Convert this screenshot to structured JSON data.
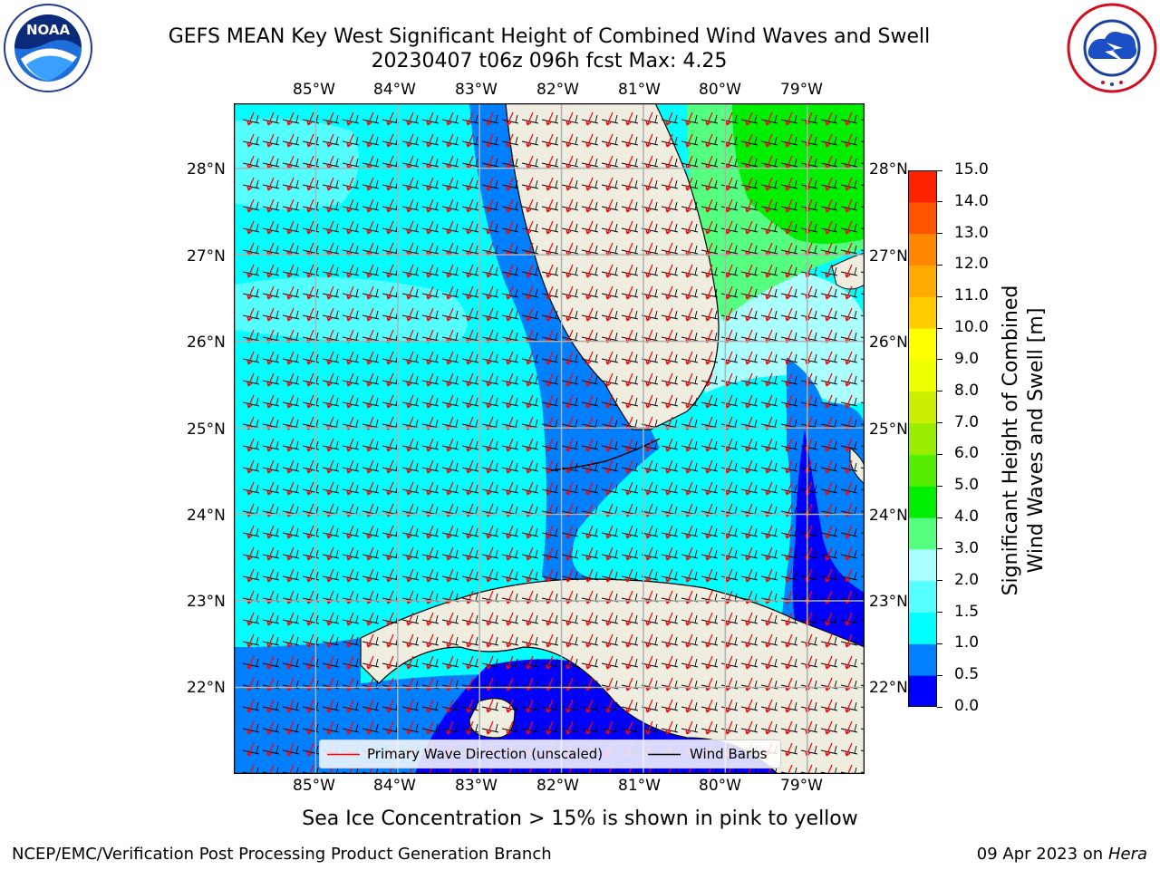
{
  "title": {
    "line1": "GEFS MEAN Key West Significant Height of Combined Wind Waves and Swell",
    "line2": "20230407 t06z 096h fcst   Max: 4.25"
  },
  "logos": {
    "left": "NOAA",
    "left_ring": "NATIONAL OCEANIC AND ATMOSPHERIC ADMINISTRATION · U.S. DEPARTMENT OF COMMERCE",
    "right_ring": "NATIONAL WEATHER SERVICE"
  },
  "map": {
    "lon_labels": [
      "85°W",
      "84°W",
      "83°W",
      "82°W",
      "81°W",
      "80°W",
      "79°W"
    ],
    "lat_labels": [
      "28°N",
      "27°N",
      "26°N",
      "25°N",
      "24°N",
      "23°N",
      "22°N"
    ],
    "extent": {
      "lon": [
        -86.0,
        -78.3
      ],
      "lat": [
        21.0,
        28.75
      ]
    },
    "grid": true
  },
  "legend": {
    "entries": [
      {
        "label": "Primary Wave Direction (unscaled)",
        "color": "#ff0000"
      },
      {
        "label": "Wind Barbs",
        "color": "#000000"
      }
    ]
  },
  "colorbar": {
    "label_line1": "Significant Height of Combined",
    "label_line2": "Wind Waves and Swell [m]",
    "ticks": [
      "0.0",
      "0.5",
      "1.0",
      "1.5",
      "2.0",
      "3.0",
      "4.0",
      "5.0",
      "6.0",
      "7.0",
      "8.0",
      "9.0",
      "10.0",
      "11.0",
      "12.0",
      "13.0",
      "14.0",
      "15.0"
    ],
    "colors": [
      "#0000ff",
      "#0080ff",
      "#00ffff",
      "#55ffff",
      "#aaffff",
      "#55ff7f",
      "#00ee00",
      "#55ee00",
      "#99ee00",
      "#ccee00",
      "#eeff00",
      "#ffff00",
      "#ffcc00",
      "#ffaa00",
      "#ff8800",
      "#ff5500",
      "#ff2200"
    ]
  },
  "subtitle": "Sea Ice Concentration > 15% is shown in pink to yellow",
  "footer": {
    "left": "NCEP/EMC/Verification Post Processing Product Generation Branch",
    "right_date": "09 Apr 2023 on ",
    "right_host": "Hera"
  },
  "colors": {
    "land": "#efede0",
    "grid": "#b0b0b0",
    "wave_arrow": "#ff0000",
    "wind_barb": "#000000",
    "coast": "#000000"
  }
}
